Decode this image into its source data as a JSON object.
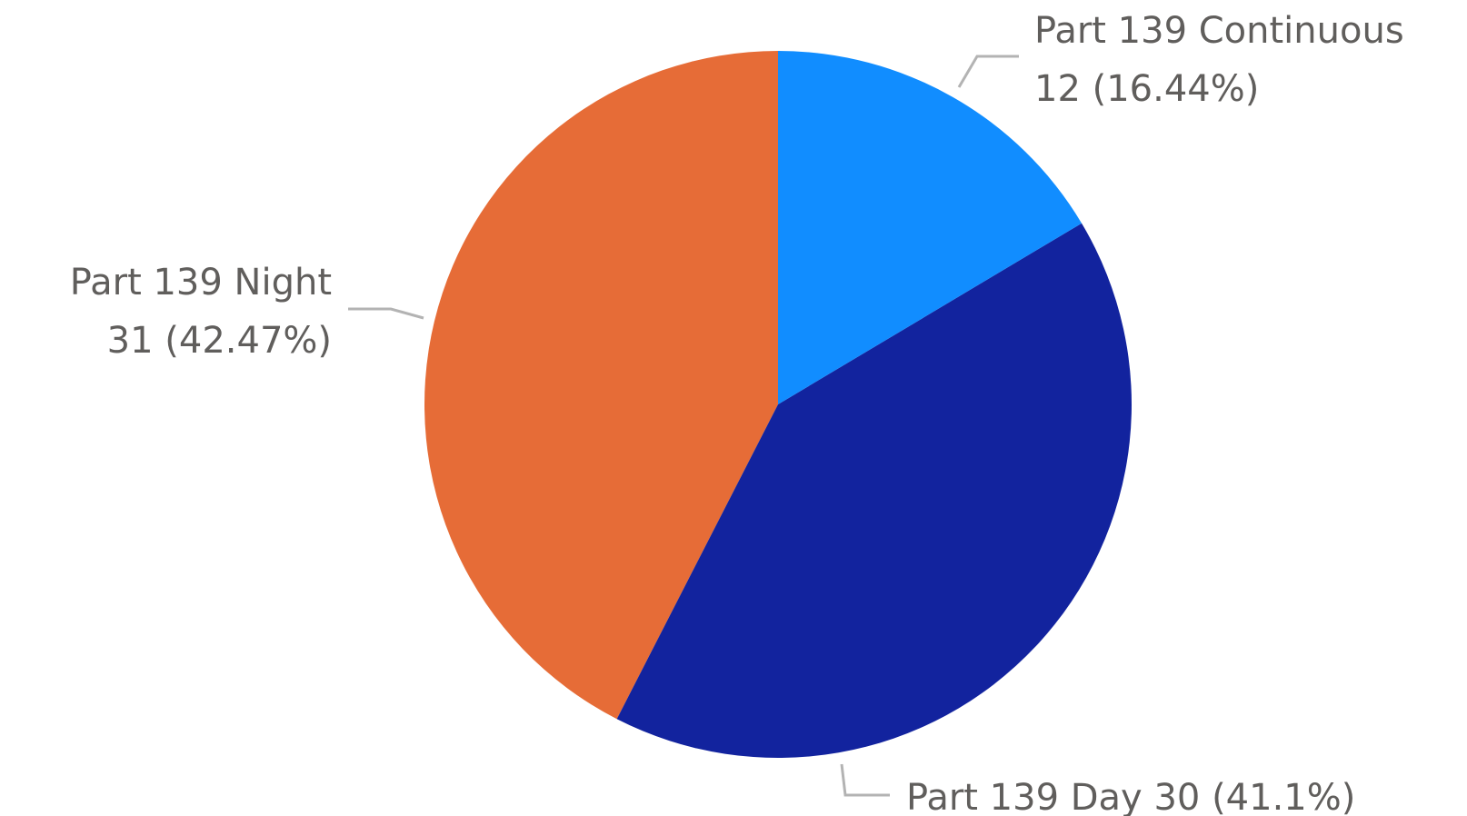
{
  "chart_data": {
    "type": "pie",
    "categories": [
      "Part 139 Continuous",
      "Part 139 Day",
      "Part 139 Night"
    ],
    "values": [
      12,
      30,
      31
    ],
    "value_labels": [
      "12 (16.44%)",
      "30 (41.1%)",
      "31 (42.47%)"
    ],
    "colors": [
      "#118dff",
      "#12239e",
      "#e66c37"
    ]
  }
}
